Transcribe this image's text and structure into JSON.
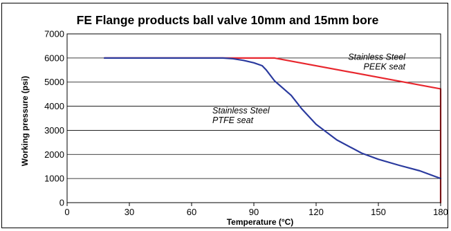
{
  "chart_data": {
    "type": "line",
    "title": "FE Flange products ball valve 10mm and 15mm bore",
    "xlabel": "Temperature (°C)",
    "ylabel": "Working pressure (psi)",
    "xlim": [
      0,
      180
    ],
    "ylim": [
      0,
      7000
    ],
    "xticks": [
      0,
      30,
      60,
      90,
      120,
      150,
      180
    ],
    "yticks": [
      0,
      1000,
      2000,
      3000,
      4000,
      5000,
      6000,
      7000
    ],
    "grid": "horizontal",
    "series": [
      {
        "name": "Stainless Steel PEEK seat",
        "label_lines": [
          "Stainless Steel",
          "PEEK seat"
        ],
        "color": "#e8262d",
        "x": [
          18,
          100,
          180,
          180
        ],
        "y": [
          6000,
          6000,
          4720,
          0
        ]
      },
      {
        "name": "Stainless Steel PTFE seat",
        "label_lines": [
          "Stainless Steel",
          "PTFE seat"
        ],
        "color": "#2a3a9e",
        "x": [
          18,
          75,
          80,
          85,
          90,
          94,
          96,
          100,
          108,
          113,
          120,
          130,
          142,
          150,
          160,
          170,
          180
        ],
        "y": [
          6000,
          6000,
          5970,
          5900,
          5800,
          5680,
          5500,
          5050,
          4450,
          3900,
          3250,
          2600,
          2050,
          1800,
          1550,
          1320,
          1000
        ]
      }
    ]
  }
}
